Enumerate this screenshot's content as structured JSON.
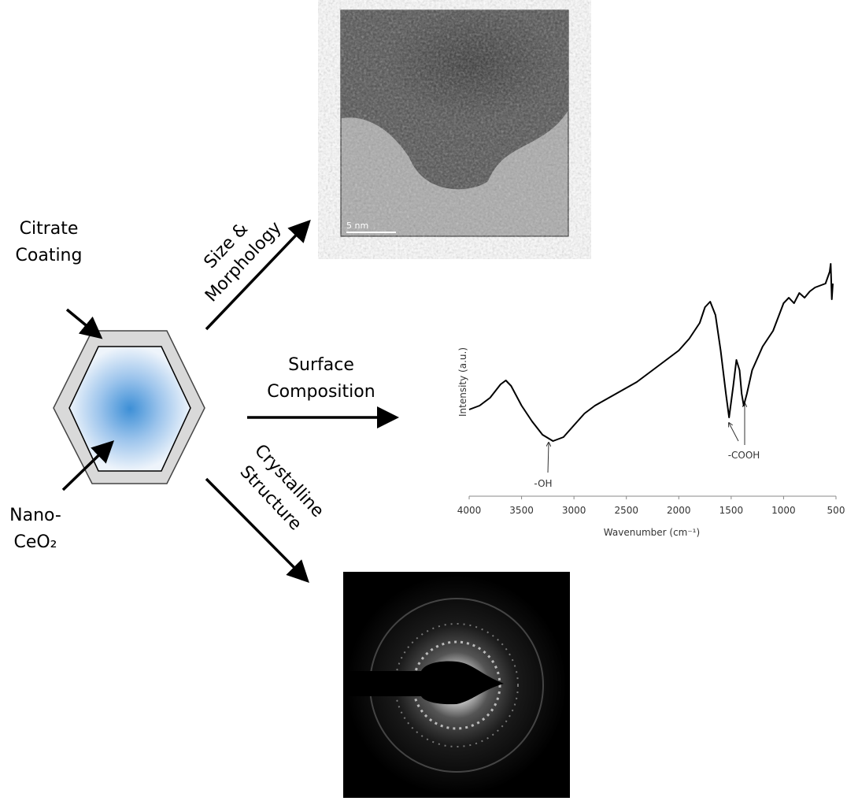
{
  "labels": {
    "citrate": [
      "Citrate",
      "Coating"
    ],
    "nano": [
      "Nano-",
      "CeO₂"
    ],
    "size": [
      "Size &",
      "Morphology"
    ],
    "surface": [
      "Surface",
      "Composition"
    ],
    "crystal": [
      "Crystalline",
      "Structure"
    ]
  },
  "tem_image": {
    "scale_bar": "5 nm"
  },
  "chart_data": {
    "type": "line",
    "color": "#000000",
    "xlabel": "Wavenumber (cm⁻¹)",
    "ylabel": "Intensity (a.u.)",
    "annotations": [
      "-OH",
      "-COOH"
    ],
    "x": [
      4000,
      3900,
      3800,
      3700,
      3650,
      3600,
      3500,
      3400,
      3300,
      3200,
      3100,
      3000,
      2900,
      2800,
      2600,
      2400,
      2200,
      2000,
      1900,
      1800,
      1750,
      1700,
      1650,
      1600,
      1550,
      1520,
      1480,
      1450,
      1420,
      1400,
      1380,
      1350,
      1300,
      1200,
      1100,
      1000,
      950,
      900,
      850,
      800,
      750,
      700,
      600,
      560,
      550,
      540,
      530
    ],
    "values": [
      60,
      65,
      75,
      92,
      97,
      90,
      65,
      45,
      28,
      20,
      25,
      40,
      55,
      65,
      80,
      95,
      115,
      135,
      150,
      170,
      190,
      197,
      180,
      135,
      80,
      50,
      90,
      123,
      110,
      80,
      65,
      80,
      110,
      140,
      160,
      195,
      202,
      195,
      208,
      202,
      210,
      215,
      220,
      235,
      245,
      200,
      220
    ],
    "xlim": [
      4000,
      500
    ],
    "xticks": [
      4000,
      3500,
      3000,
      2500,
      2000,
      1500,
      1000,
      500
    ],
    "ylim": [
      0,
      250
    ]
  }
}
